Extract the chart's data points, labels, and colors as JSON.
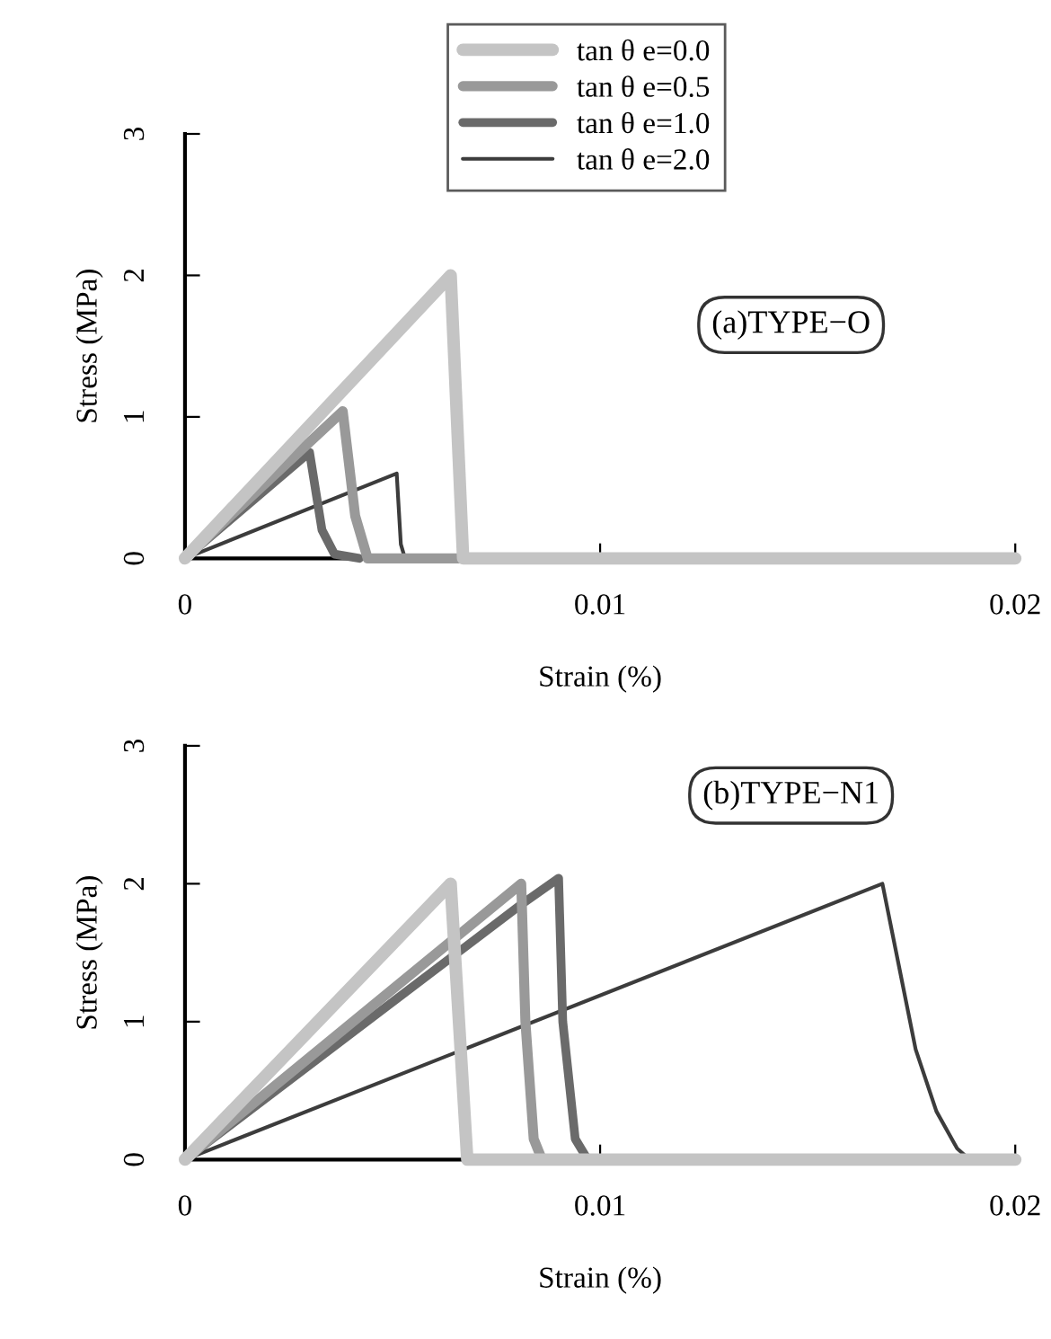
{
  "chart_data": [
    {
      "type": "line",
      "xlabel": "Strain (%)",
      "ylabel": "Stress (MPa)",
      "xlim": [
        0,
        0.02
      ],
      "ylim": [
        0,
        3
      ],
      "xticks": [
        0,
        0.01,
        0.02
      ],
      "yticks": [
        0,
        1,
        2,
        3
      ],
      "grid": false,
      "legend": "top",
      "line_style": "solid",
      "marker": "none",
      "annotations": [
        "(a)TYPE−O"
      ],
      "series": [
        {
          "name": "tan θ e=0.0",
          "color": "#c4c4c4",
          "x": [
            0,
            0.0064,
            0.0067,
            0.02
          ],
          "values": [
            0,
            2.0,
            0,
            0
          ]
        },
        {
          "name": "tan θ e=0.5",
          "color": "#999999",
          "x": [
            0,
            0.0038,
            0.0041,
            0.0044,
            0.0067
          ],
          "values": [
            0,
            1.04,
            0.3,
            0,
            0
          ]
        },
        {
          "name": "tan θ e=1.0",
          "color": "#6a6a6a",
          "x": [
            0,
            0.003,
            0.0033,
            0.0036,
            0.0042
          ],
          "values": [
            0,
            0.75,
            0.2,
            0.03,
            0
          ]
        },
        {
          "name": "tan θ e=2.0",
          "color": "#3c3c3c",
          "x": [
            0,
            0.0051,
            0.0052,
            0.0053
          ],
          "values": [
            0,
            0.6,
            0.1,
            0
          ]
        }
      ]
    },
    {
      "type": "line",
      "xlabel": "Strain (%)",
      "ylabel": "Stress (MPa)",
      "xlim": [
        0,
        0.02
      ],
      "ylim": [
        0,
        3
      ],
      "xticks": [
        0,
        0.01,
        0.02
      ],
      "yticks": [
        0,
        1,
        2,
        3
      ],
      "grid": false,
      "line_style": "solid",
      "marker": "none",
      "annotations": [
        "(b)TYPE−N1"
      ],
      "series": [
        {
          "color": "#c4c4c4",
          "x": [
            0,
            0.0064,
            0.0066,
            0.0068,
            0.02
          ],
          "values": [
            0,
            2.0,
            1.0,
            0,
            0
          ]
        },
        {
          "color": "#999999",
          "x": [
            0,
            0.0081,
            0.0082,
            0.0084,
            0.0086
          ],
          "values": [
            0,
            2.0,
            1.0,
            0.15,
            0
          ]
        },
        {
          "color": "#6a6a6a",
          "x": [
            0,
            0.0081,
            0.009,
            0.0091,
            0.0094,
            0.0097
          ],
          "values": [
            0,
            1.85,
            2.04,
            1.0,
            0.15,
            0
          ]
        },
        {
          "color": "#3c3c3c",
          "x": [
            0,
            0.0168,
            0.0172,
            0.0176,
            0.0181,
            0.0186,
            0.0189
          ],
          "values": [
            0,
            2.0,
            1.4,
            0.8,
            0.35,
            0.08,
            0
          ]
        }
      ]
    }
  ]
}
